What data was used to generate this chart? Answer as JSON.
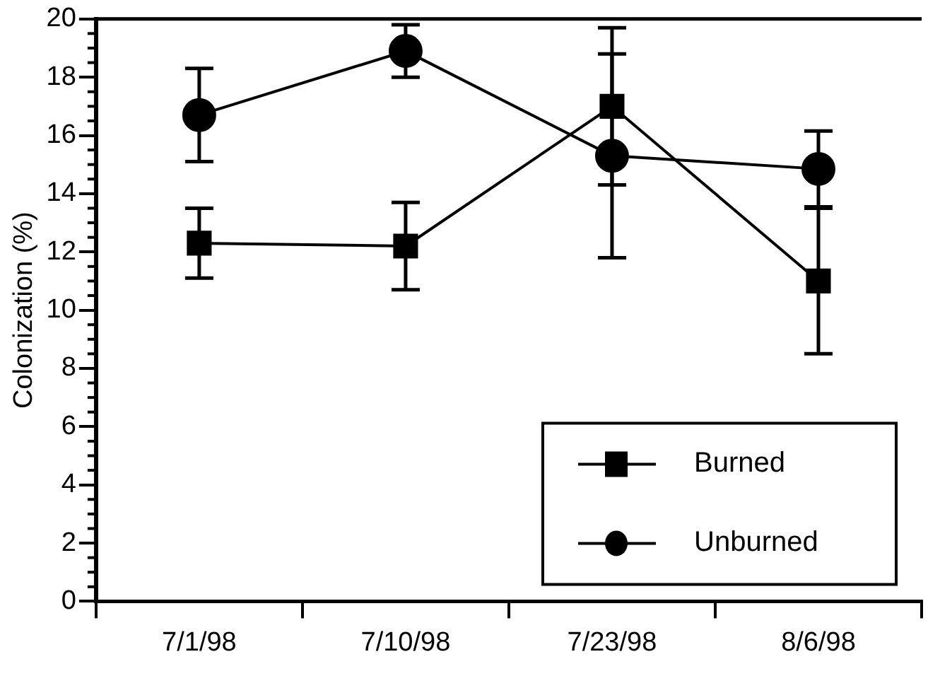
{
  "chart_data": {
    "type": "line",
    "ylabel": "Colonization (%)",
    "categories": [
      "7/1/98",
      "7/10/98",
      "7/23/98",
      "8/6/98"
    ],
    "ylim": [
      0,
      20
    ],
    "yticks": [
      0,
      2,
      4,
      6,
      8,
      10,
      12,
      14,
      16,
      18,
      20
    ],
    "grid": false,
    "legend": "bottom right",
    "line_style": "solid",
    "series": [
      {
        "name": "Burned",
        "color": "#000000",
        "marker": "square",
        "values": [
          12.3,
          12.2,
          17,
          11
        ],
        "errors": [
          1.2,
          1.5,
          2.7,
          2.5
        ]
      },
      {
        "name": "Unburned",
        "color": "#000000",
        "marker": "circle",
        "values": [
          16.7,
          18.9,
          15.3,
          14.85
        ],
        "errors": [
          1.6,
          0.9,
          3.5,
          1.3
        ]
      }
    ]
  }
}
